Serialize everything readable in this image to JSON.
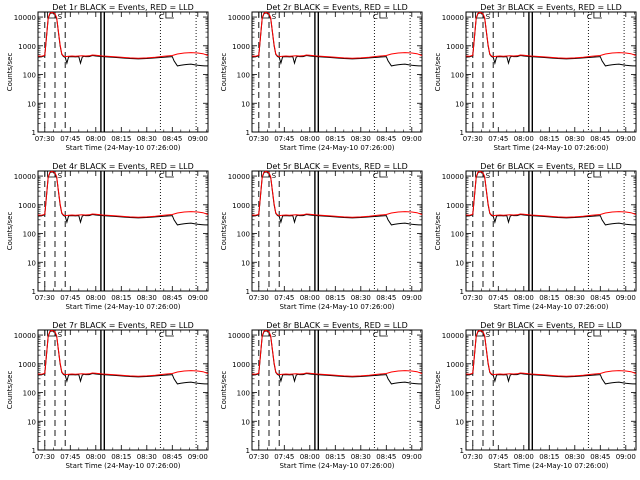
{
  "ylabel": "Counts/sec",
  "xlabel": "Start Time (24-May-10 07:26:00)",
  "xticks": [
    "07:30",
    "07:45",
    "08:00",
    "08:15",
    "08:30",
    "08:45",
    "09:00"
  ],
  "yticks": [
    "1",
    "10",
    "100",
    "1000",
    "10000"
  ],
  "panel_titles": [
    "Det 1r BLACK = Events, RED = LLD",
    "Det 2r BLACK = Events, RED = LLD",
    "Det 3r BLACK = Events, RED = LLD",
    "Det 4r BLACK = Events, RED = LLD",
    "Det 5r BLACK = Events, RED = LLD",
    "Det 6r BLACK = Events, RED = LLD",
    "Det 7r BLACK = Events, RED = LLD",
    "Det 8r BLACK = Events, RED = LLD",
    "Det 9r BLACK = Events, RED = LLD"
  ],
  "top_markers": [
    "S",
    "C"
  ],
  "colors": {
    "events": "#000000",
    "lld": "#ff0000",
    "axes": "#000000",
    "background": "#ffffff"
  },
  "chart_data": {
    "type": "line",
    "x_unit": "time (HH:MM, 24-May-10)",
    "y_scale": "log",
    "xlim": [
      "07:26",
      "09:06"
    ],
    "ylim": [
      1,
      15000
    ],
    "grid": false,
    "series": [
      {
        "name": "Events",
        "color": "#000000",
        "x": [
          "07:26",
          "07:28",
          "07:30",
          "07:31",
          "07:32",
          "07:33",
          "07:34",
          "07:35",
          "07:36",
          "07:37",
          "07:38",
          "07:39",
          "07:40",
          "07:41",
          "07:42",
          "07:43",
          "07:44",
          "07:46",
          "07:48",
          "07:50",
          "07:51",
          "07:52",
          "07:53",
          "07:54",
          "07:56",
          "07:58",
          "08:00",
          "08:04",
          "08:10",
          "08:15",
          "08:20",
          "08:25",
          "08:30",
          "08:35",
          "08:40",
          "08:45",
          "08:46",
          "08:48",
          "08:50",
          "08:52",
          "08:54",
          "08:56",
          "08:58",
          "09:00",
          "09:02",
          "09:04",
          "09:06"
        ],
        "values": [
          420,
          410,
          450,
          2000,
          9000,
          13000,
          14000,
          13500,
          12500,
          9000,
          3000,
          1000,
          500,
          420,
          400,
          250,
          410,
          420,
          410,
          420,
          250,
          400,
          430,
          420,
          420,
          460,
          440,
          420,
          400,
          380,
          360,
          350,
          360,
          380,
          400,
          420,
          300,
          200,
          210,
          220,
          225,
          230,
          220,
          210,
          205,
          200,
          200
        ]
      },
      {
        "name": "LLD",
        "color": "#ff0000",
        "x": [
          "07:26",
          "07:28",
          "07:30",
          "07:31",
          "07:32",
          "07:33",
          "07:34",
          "07:35",
          "07:36",
          "07:37",
          "07:38",
          "07:39",
          "07:40",
          "07:41",
          "07:42",
          "07:44",
          "07:46",
          "07:48",
          "07:50",
          "07:52",
          "07:54",
          "07:56",
          "07:58",
          "08:00",
          "08:04",
          "08:10",
          "08:15",
          "08:20",
          "08:25",
          "08:30",
          "08:35",
          "08:40",
          "08:45",
          "08:48",
          "08:52",
          "08:56",
          "09:00",
          "09:03",
          "09:06"
        ],
        "values": [
          440,
          430,
          470,
          2100,
          9500,
          13500,
          14500,
          14000,
          13000,
          9500,
          3200,
          1100,
          520,
          440,
          420,
          430,
          440,
          430,
          440,
          450,
          440,
          450,
          480,
          470,
          440,
          420,
          400,
          380,
          370,
          380,
          400,
          430,
          460,
          520,
          560,
          580,
          560,
          530,
          460
        ]
      }
    ],
    "vertical_lines": [
      {
        "x": "07:30",
        "style": "dashed"
      },
      {
        "x": "07:36",
        "style": "dashed"
      },
      {
        "x": "07:42",
        "style": "dashed"
      },
      {
        "x": "08:03",
        "style": "solid"
      },
      {
        "x": "08:05",
        "style": "solid"
      },
      {
        "x": "08:38",
        "style": "dotted"
      },
      {
        "x": "08:59",
        "style": "dotted"
      }
    ]
  }
}
